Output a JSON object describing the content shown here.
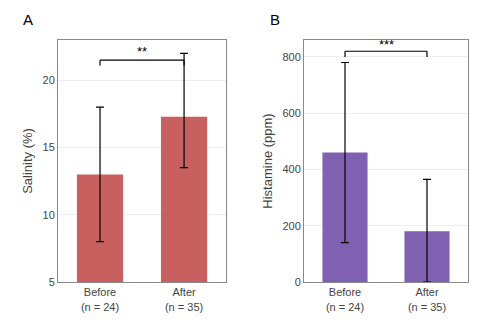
{
  "chart_data": [
    {
      "type": "bar",
      "title": "A",
      "categories": [
        "Before\n(n = 24)",
        "After\n(n = 35)"
      ],
      "values": [
        13.0,
        17.3
      ],
      "err_low": [
        5.0,
        3.8
      ],
      "err_high": [
        5.0,
        4.7
      ],
      "color": "#c96060",
      "ylabel": "Salinity (%)",
      "ylim": [
        5,
        23
      ],
      "yticks": [
        5,
        10,
        15,
        20
      ],
      "grid": true,
      "significance": {
        "text": "**",
        "y": 21.5,
        "text_y": 21.7,
        "drop": 0.4
      }
    },
    {
      "type": "bar",
      "title": "B",
      "categories": [
        "Before\n(n = 24)",
        "After\n(n = 35)"
      ],
      "values": [
        460,
        180
      ],
      "err_low": [
        320,
        180
      ],
      "err_high": [
        320,
        185
      ],
      "color": "#8060b0",
      "ylabel": "Histamine (ppm)",
      "ylim": [
        0,
        860
      ],
      "yticks": [
        0,
        200,
        400,
        600,
        800
      ],
      "grid": true,
      "significance": {
        "text": "***",
        "y": 820,
        "text_y": 825,
        "drop": 20
      }
    }
  ]
}
